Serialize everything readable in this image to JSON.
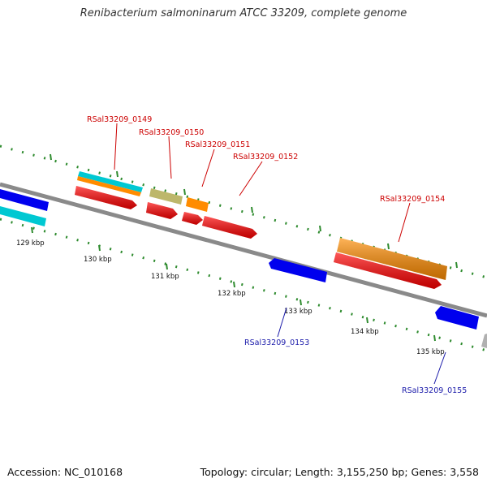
{
  "title": "Renibacterium salmoninarum ATCC 33209, complete genome",
  "footer": {
    "accession": "Accession: NC_010168",
    "summary": "Topology: circular; Length: 3,155,250 bp; Genes: 3,558"
  },
  "colors": {
    "backbone": "#8a8a8a",
    "ruler_dot": "#2e8b2e",
    "label_forward": "#cc0000",
    "label_reverse": "#1a1aaa",
    "cds_red": "#ff0000",
    "gene_orange": "#ff8c00",
    "gene_cyan": "#00c8d2",
    "gene_khaki": "#bdb76b",
    "gene_blue": "#0000ee",
    "gene_grey": "#b0b0b0"
  },
  "ruler": {
    "ticks": [
      "129 kbp",
      "130 kbp",
      "131 kbp",
      "132 kbp",
      "133 kbp",
      "134 kbp",
      "135 kbp"
    ]
  },
  "labels": {
    "g0149": "RSal33209_0149",
    "g0150": "RSal33209_0150",
    "g0151": "RSal33209_0151",
    "g0152": "RSal33209_0152",
    "g0153": "RSal33209_0153",
    "g0154": "RSal33209_0154",
    "g0155": "RSal33209_0155"
  }
}
